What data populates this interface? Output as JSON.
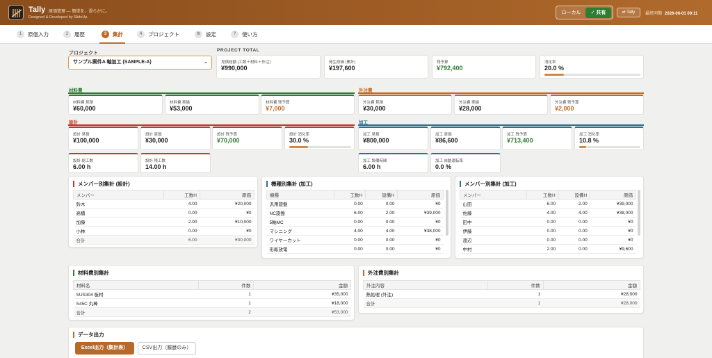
{
  "app": {
    "title": "Tally",
    "subtitle": "原価管理 — 簡単を、滑らかに。",
    "credit": "Designed & Developed by SlideUp"
  },
  "header": {
    "mode_local": "ローカル",
    "mode_shared": "✓ 共有",
    "tally_button": "⇄ Tally",
    "sync_label": "最終同期",
    "sync_time": "2026-06-01 09:11"
  },
  "tabs": [
    {
      "num": "1",
      "label": "原価入力"
    },
    {
      "num": "2",
      "label": "履歴"
    },
    {
      "num": "3",
      "label": "集計"
    },
    {
      "num": "4",
      "label": "プロジェクト"
    },
    {
      "num": "⚙",
      "label": "設定"
    },
    {
      "num": "?",
      "label": "使い方"
    }
  ],
  "project": {
    "label": "プロジェクト",
    "selected": "サンプル案件A 軸加工 (SAMPLE-A)"
  },
  "total": {
    "label": "PROJECT TOTAL",
    "cards": [
      {
        "title": "見積総額 (工数＋材料＋外注)",
        "value": "¥990,000"
      },
      {
        "title": "発生原価 (累計)",
        "value": "¥197,600"
      },
      {
        "title": "残予算",
        "value": "¥792,400"
      },
      {
        "title": "消化率",
        "value": "20.0 %",
        "progress": 0.2
      }
    ]
  },
  "material": {
    "label": "材料費",
    "cards": [
      {
        "title": "材料費 見積",
        "value": "¥60,000"
      },
      {
        "title": "材料費 実績",
        "value": "¥53,000"
      },
      {
        "title": "材料費 残予算",
        "value": "¥7,000"
      }
    ]
  },
  "outsource": {
    "label": "外注費",
    "cards": [
      {
        "title": "外注費 見積",
        "value": "¥30,000"
      },
      {
        "title": "外注費 実績",
        "value": "¥28,000"
      },
      {
        "title": "外注費 残予算",
        "value": "¥2,000"
      }
    ]
  },
  "design": {
    "label": "設計",
    "cards": [
      {
        "title": "設計 見積",
        "value": "¥100,000"
      },
      {
        "title": "設計 原価",
        "value": "¥30,000"
      },
      {
        "title": "設計 残予算",
        "value": "¥70,000"
      },
      {
        "title": "設計 消化率",
        "value": "30.0 %",
        "progress": 0.3
      },
      {
        "title": "設計 総工数",
        "value": "6.00 h"
      },
      {
        "title": "設計 残工数",
        "value": "14.00 h"
      }
    ]
  },
  "machining": {
    "label": "加工",
    "cards": [
      {
        "title": "加工 見積",
        "value": "¥800,000"
      },
      {
        "title": "加工 原価",
        "value": "¥86,600"
      },
      {
        "title": "加工 残予算",
        "value": "¥713,400"
      },
      {
        "title": "加工 消化率",
        "value": "10.8 %",
        "progress": 0.108
      },
      {
        "title": "加工 設備時間",
        "value": "6.00 h"
      },
      {
        "title": "加工 自動運転率",
        "value": "0.0 %"
      }
    ]
  },
  "member_design": {
    "title": "メンバー別集計 (設計)",
    "headers": [
      "メンバー",
      "工数H",
      "原価"
    ],
    "rows": [
      [
        "鈴木",
        "4.00",
        "¥20,000"
      ],
      [
        "高橋",
        "0.00",
        "¥0"
      ],
      [
        "加藤",
        "2.00",
        "¥10,000"
      ],
      [
        "小林",
        "0.00",
        "¥0"
      ]
    ],
    "total": [
      "合計",
      "6.00",
      "¥30,000"
    ]
  },
  "machine": {
    "title": "機種別集計 (加工)",
    "headers": [
      "機種",
      "工数H",
      "設備H",
      "原価"
    ],
    "rows": [
      [
        "汎用旋盤",
        "0.00",
        "0.00",
        "¥0"
      ],
      [
        "NC旋盤",
        "6.00",
        "2.00",
        "¥39,000"
      ],
      [
        "5軸MC",
        "0.00",
        "0.00",
        "¥0"
      ],
      [
        "マシニング",
        "4.00",
        "4.00",
        "¥38,000"
      ],
      [
        "ワイヤーカット",
        "0.00",
        "0.00",
        "¥0"
      ],
      [
        "形彫放電",
        "0.00",
        "0.00",
        "¥0"
      ]
    ]
  },
  "member_mach": {
    "title": "メンバー別集計 (加工)",
    "headers": [
      "メンバー",
      "工数H",
      "設備H",
      "原価"
    ],
    "rows": [
      [
        "山田",
        "6.00",
        "2.00",
        "¥39,000"
      ],
      [
        "佐藤",
        "4.00",
        "4.00",
        "¥38,000"
      ],
      [
        "田中",
        "0.00",
        "0.00",
        "¥0"
      ],
      [
        "伊藤",
        "0.00",
        "0.00",
        "¥0"
      ],
      [
        "渡辺",
        "0.00",
        "0.00",
        "¥0"
      ],
      [
        "中村",
        "2.00",
        "0.00",
        "¥9,600"
      ]
    ]
  },
  "material_table": {
    "title": "材料費別集計",
    "headers": [
      "材料名",
      "件数",
      "金額"
    ],
    "rows": [
      [
        "SUS304 板材",
        "1",
        "¥35,000"
      ],
      [
        "S45C 丸棒",
        "1",
        "¥18,000"
      ]
    ],
    "total": [
      "合計",
      "2",
      "¥53,000"
    ]
  },
  "outsource_table": {
    "title": "外注費別集計",
    "headers": [
      "外注内容",
      "件数",
      "金額"
    ],
    "rows": [
      [
        "熱処理 (外注)",
        "1",
        "¥28,000"
      ]
    ],
    "total": [
      "合計",
      "1",
      "¥28,000"
    ]
  },
  "export": {
    "title": "データ出力",
    "excel": "Excel出力（集計表）",
    "csv": "CSV出力（履歴のみ）"
  },
  "colors": {
    "accent": "#b8692a",
    "material": "#2e7d32",
    "outsource": "#c06a25",
    "design": "#c0392b",
    "machining": "#2a6f8f",
    "positive": "#2e7d32"
  }
}
